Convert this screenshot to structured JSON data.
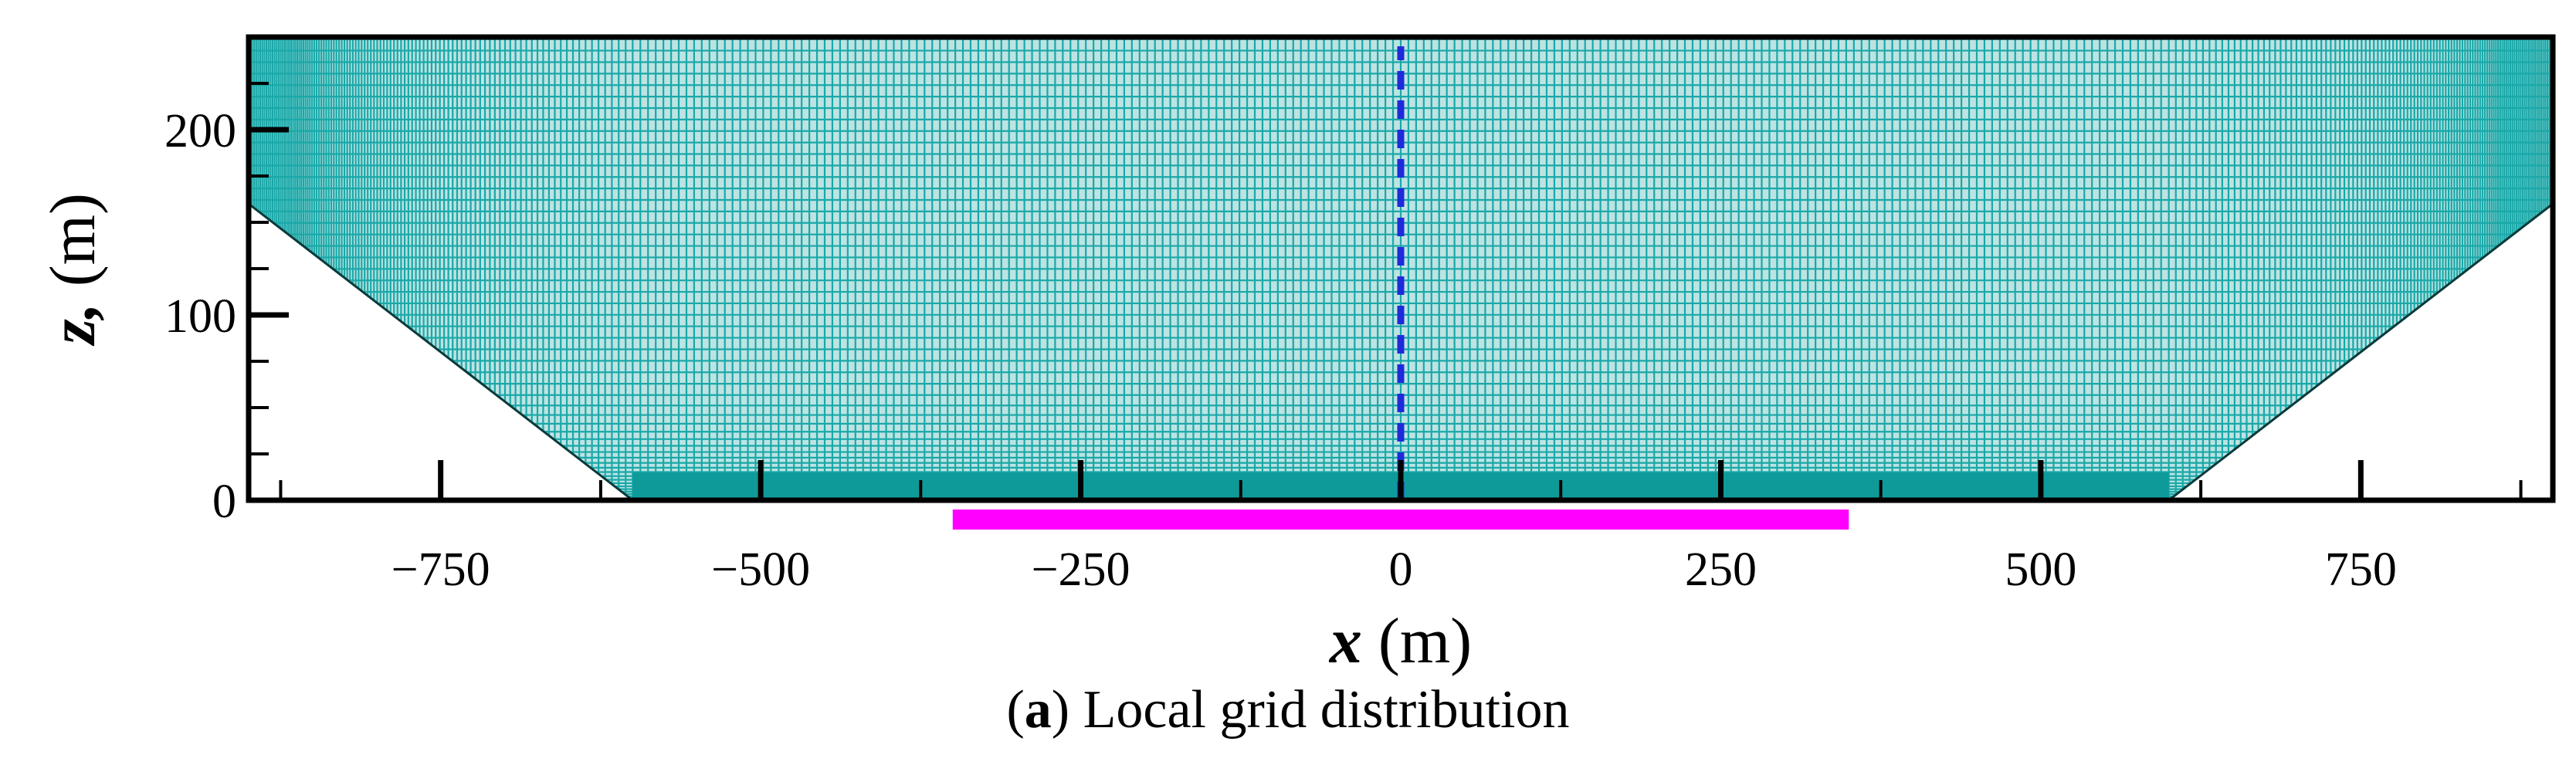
{
  "caption": {
    "letter": "a",
    "text": "Local grid distribution"
  },
  "chart_data": {
    "type": "mesh",
    "title": "",
    "xlabel": {
      "var": "x",
      "unit": "(m)"
    },
    "ylabel": {
      "var": "z",
      "unit": "(m)"
    },
    "xlim": [
      -900,
      900
    ],
    "ylim": [
      0,
      250
    ],
    "xticks": [
      -750,
      -500,
      -250,
      0,
      250,
      500,
      750
    ],
    "yticks": [
      0,
      100,
      200
    ],
    "grid_on": false,
    "mesh": {
      "color": "#1aa8a8",
      "fill": "#bde3e3",
      "dense_color": "#0f9a9a",
      "central_region_x": [
        -600,
        600
      ],
      "left_bottom_boundary": [
        [
          -900,
          160
        ],
        [
          -600,
          0
        ]
      ],
      "right_bottom_boundary": [
        [
          600,
          0
        ],
        [
          900,
          160
        ]
      ],
      "dense_near_ground_z": [
        0,
        15
      ]
    },
    "annotations": [
      {
        "type": "dashed-line",
        "name": "centerline",
        "x": [
          0,
          0
        ],
        "z": [
          0,
          245
        ],
        "color": "#1e2bd9"
      },
      {
        "type": "bar",
        "name": "source-bar",
        "x": [
          -350,
          350
        ],
        "color": "#ff00ff"
      }
    ]
  }
}
